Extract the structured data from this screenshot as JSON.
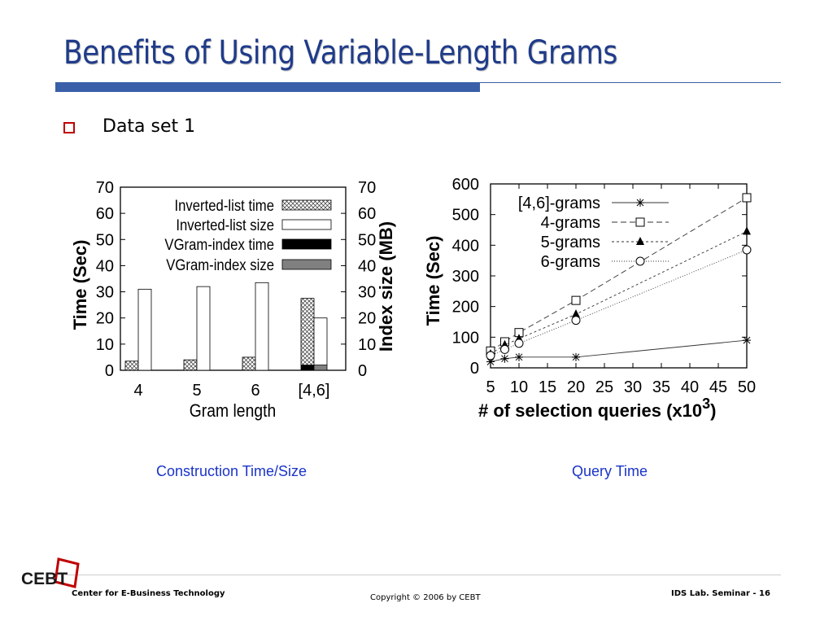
{
  "slide": {
    "title": "Benefits of Using Variable-Length Grams",
    "bullet": "Data set 1",
    "caption_left": "Construction Time/Size",
    "caption_right": "Query Time",
    "footer_left": "Center for E-Business Technology",
    "footer_center": "Copyright © 2006 by CEBT",
    "footer_right": "IDS Lab. Seminar - 16",
    "logo_text": "CEBT"
  },
  "colors": {
    "title": "#1f3b8a",
    "rule": "#3a5fa8",
    "bullet": "#c00000",
    "caption": "#1a34c8"
  },
  "chart_data": [
    {
      "type": "bar",
      "categories": [
        "4",
        "5",
        "6",
        "[4,6]"
      ],
      "xlabel": "Gram length",
      "ylabel": "Time (Sec)",
      "ylabel_right": "Index size (MB)",
      "ylim": [
        0,
        70
      ],
      "yticks": [
        "0",
        "10",
        "20",
        "30",
        "40",
        "50",
        "60",
        "70"
      ],
      "yticks_right": [
        "0",
        "10",
        "20",
        "30",
        "40",
        "50",
        "60",
        "70"
      ],
      "legend_position": "top-right",
      "series": [
        {
          "name": "Inverted-list time",
          "values": [
            3.5,
            4,
            5,
            25.5
          ],
          "pattern": "crosshatch"
        },
        {
          "name": "Inverted-list size",
          "values": [
            31,
            32,
            33.5,
            18
          ],
          "pattern": "white"
        },
        {
          "name": "VGram-index time",
          "values": [
            0,
            0,
            0,
            2
          ],
          "pattern": "black"
        },
        {
          "name": "VGram-index size",
          "values": [
            0,
            0,
            0,
            2
          ],
          "pattern": "gray"
        }
      ]
    },
    {
      "type": "line",
      "xlabel": "# of selection queries (x10",
      "xlabel_sup": "3",
      "xlabel_close": ")",
      "ylabel": "Time (Sec)",
      "xlim": [
        5,
        50
      ],
      "ylim": [
        0,
        600
      ],
      "xticks": [
        "5",
        "10",
        "15",
        "20",
        "25",
        "30",
        "35",
        "40",
        "45",
        "50"
      ],
      "yticks": [
        "0",
        "100",
        "200",
        "300",
        "400",
        "500",
        "600"
      ],
      "legend_position": "top-left",
      "series": [
        {
          "name": "[4,6]-grams",
          "marker": "star",
          "dash": "",
          "x": [
            5,
            7.5,
            10,
            20,
            50
          ],
          "values": [
            20,
            30,
            35,
            35,
            90
          ]
        },
        {
          "name": "4-grams",
          "marker": "square",
          "dash": "7,4",
          "x": [
            5,
            7.5,
            10,
            20,
            50
          ],
          "values": [
            55,
            85,
            115,
            220,
            555
          ]
        },
        {
          "name": "5-grams",
          "marker": "triangle",
          "dash": "3,3",
          "x": [
            5,
            7.5,
            10,
            20,
            50
          ],
          "values": [
            45,
            75,
            95,
            175,
            445
          ]
        },
        {
          "name": "6-grams",
          "marker": "circle",
          "dash": "1,2",
          "x": [
            5,
            7.5,
            10,
            20,
            50
          ],
          "values": [
            40,
            60,
            80,
            155,
            385
          ]
        }
      ]
    }
  ]
}
